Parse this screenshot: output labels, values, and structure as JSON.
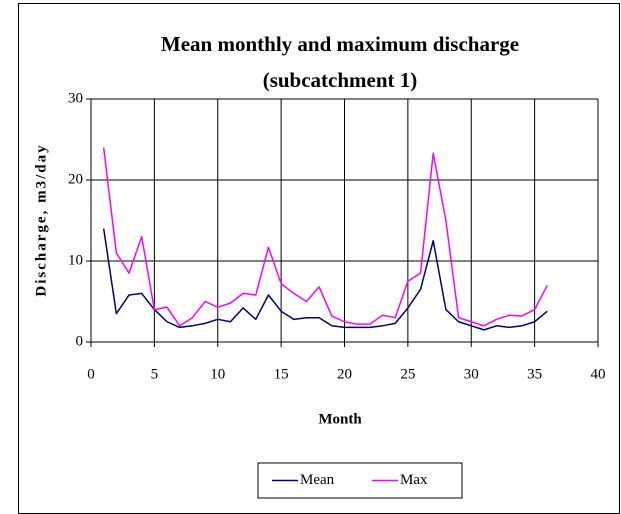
{
  "chart_data": {
    "type": "line",
    "title": [
      "Mean monthly and maximum discharge",
      "(subcatchment 1)"
    ],
    "x_label": "Month",
    "y_label": "Discharge, m3/day",
    "x": [
      1,
      2,
      3,
      4,
      5,
      6,
      7,
      8,
      9,
      10,
      11,
      12,
      13,
      14,
      15,
      16,
      17,
      18,
      19,
      20,
      21,
      22,
      23,
      24,
      25,
      26,
      27,
      28,
      29,
      30,
      31,
      32,
      33,
      34,
      35,
      36
    ],
    "series": [
      {
        "name": "Mean",
        "color": "#000080",
        "values": [
          14,
          3.5,
          5.8,
          6,
          4,
          2.5,
          1.8,
          2,
          2.3,
          2.8,
          2.5,
          4.2,
          2.8,
          5.8,
          3.8,
          2.8,
          3,
          3,
          2,
          1.8,
          1.8,
          1.8,
          2,
          2.3,
          4.2,
          6.5,
          12.5,
          4,
          2.5,
          2,
          1.5,
          2,
          1.8,
          2,
          2.5,
          3.8
        ]
      },
      {
        "name": "Max",
        "color": "#ff00ff",
        "values": [
          24,
          11,
          8.5,
          13,
          4,
          4.3,
          2,
          3,
          5,
          4.3,
          4.8,
          6,
          5.8,
          11.7,
          7.2,
          6,
          5,
          6.8,
          3.2,
          2.5,
          2.2,
          2.2,
          3.3,
          3,
          7.5,
          8.5,
          23.3,
          15,
          3,
          2.5,
          2,
          2.8,
          3.3,
          3.2,
          4,
          7
        ]
      }
    ],
    "xlim": [
      0,
      40
    ],
    "xticks": [
      0,
      5,
      10,
      15,
      20,
      25,
      30,
      35,
      40
    ],
    "ylim": [
      0,
      30
    ],
    "yticks": [
      0,
      10,
      20,
      30
    ],
    "grid": true,
    "legend": "bottom"
  }
}
